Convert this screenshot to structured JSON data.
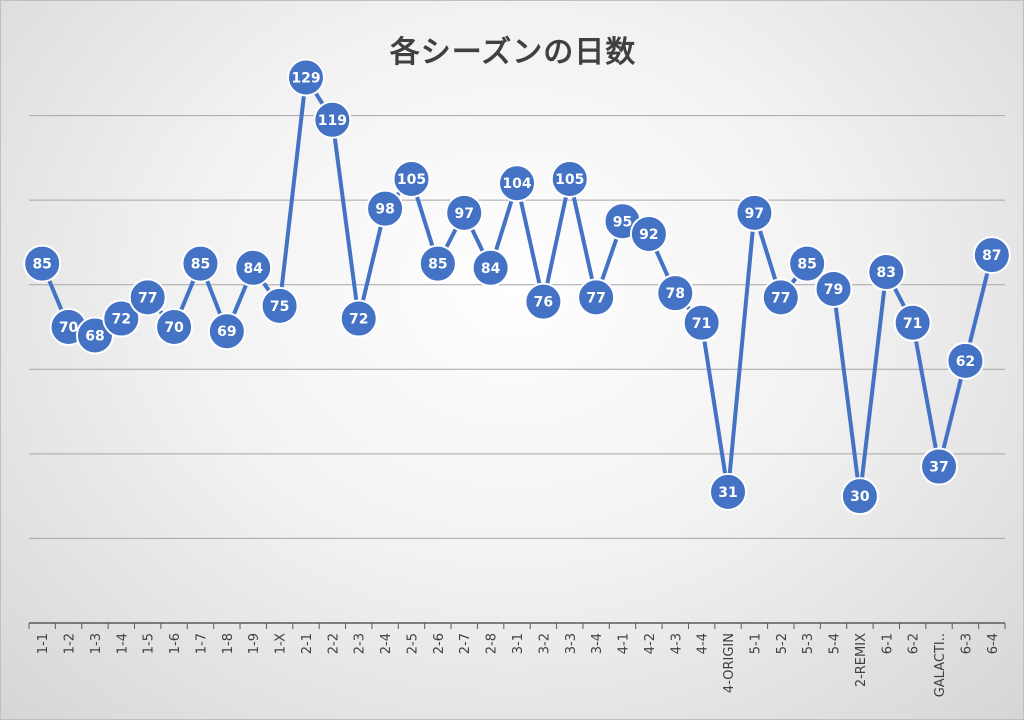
{
  "chart_data": {
    "type": "line",
    "title": "各シーズンの日数",
    "categories": [
      "1-1",
      "1-2",
      "1-3",
      "1-4",
      "1-5",
      "1-6",
      "1-7",
      "1-8",
      "1-9",
      "1-X",
      "2-1",
      "2-2",
      "2-3",
      "2-4",
      "2-5",
      "2-6",
      "2-7",
      "2-8",
      "3-1",
      "3-2",
      "3-3",
      "3-4",
      "4-1",
      "4-2",
      "4-3",
      "4-4",
      "4-ORIGIN",
      "5-1",
      "5-2",
      "5-3",
      "5-4",
      "2-REMIX",
      "6-1",
      "6-2",
      "GALACTI..",
      "6-3",
      "6-4"
    ],
    "series": [
      {
        "values": [
          85,
          70,
          68,
          72,
          77,
          70,
          85,
          69,
          84,
          75,
          129,
          119,
          72,
          98,
          105,
          85,
          97,
          84,
          104,
          76,
          105,
          77,
          95,
          92,
          78,
          71,
          31,
          97,
          77,
          85,
          79,
          30,
          83,
          71,
          37,
          62,
          87
        ],
        "color": "#4472c4"
      }
    ],
    "ylim": [
      0,
      140
    ],
    "ygrid_step": 20,
    "grid": true,
    "y_tick_labels_visible": false,
    "data_labels": true,
    "legend": "none"
  }
}
